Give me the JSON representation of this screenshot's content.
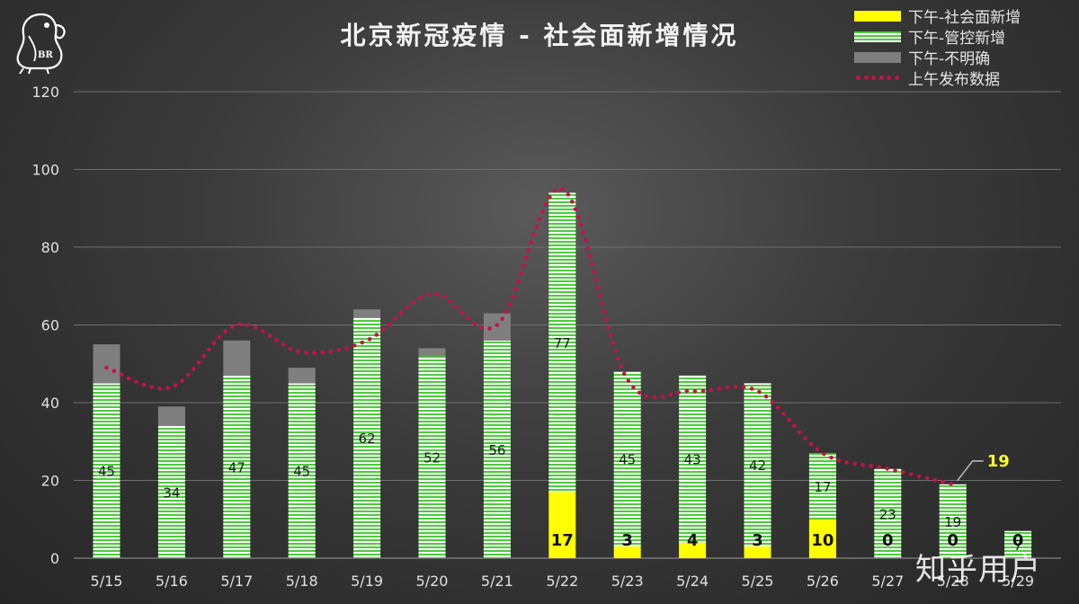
{
  "chart_data": {
    "type": "bar",
    "title": "北京新冠疫情 - 社会面新增情况",
    "categories": [
      "5/15",
      "5/16",
      "5/17",
      "5/18",
      "5/19",
      "5/20",
      "5/21",
      "5/22",
      "5/23",
      "5/24",
      "5/25",
      "5/26",
      "5/27",
      "5/28",
      "5/29"
    ],
    "stacked": true,
    "ylim": [
      0,
      120
    ],
    "yticks": [
      0,
      20,
      40,
      60,
      80,
      100,
      120
    ],
    "grid": true,
    "legend_position": "top-right",
    "series": [
      {
        "name": "下午-社会面新增",
        "kind": "bar",
        "color": "#ffff00",
        "values": [
          0,
          0,
          0,
          0,
          0,
          0,
          0,
          17,
          3,
          4,
          3,
          10,
          0,
          0,
          0
        ],
        "labels": [
          "",
          "",
          "",
          "",
          "",
          "",
          "",
          "17",
          "3",
          "4",
          "3",
          "10",
          "0",
          "0",
          "0"
        ]
      },
      {
        "name": "下午-管控新增",
        "kind": "bar",
        "color": "#4ccc3c",
        "values": [
          45,
          34,
          47,
          45,
          62,
          52,
          56,
          77,
          45,
          43,
          42,
          17,
          23,
          19,
          7
        ],
        "labels": [
          "45",
          "34",
          "47",
          "45",
          "62",
          "52",
          "56",
          "77",
          "45",
          "43",
          "42",
          "17",
          "23",
          "19",
          "7"
        ]
      },
      {
        "name": "下午-不明确",
        "kind": "bar",
        "color": "#7f7f7f",
        "values": [
          10,
          5,
          9,
          4,
          2,
          2,
          7,
          0,
          0,
          0,
          0,
          0,
          0,
          0,
          0
        ]
      },
      {
        "name": "上午发布数据",
        "kind": "line",
        "color": "#c8104a",
        "values": [
          49,
          44,
          60,
          53,
          56,
          68,
          60,
          95,
          46,
          43,
          43,
          27,
          23,
          19,
          null
        ]
      }
    ],
    "annotation": {
      "text": "19",
      "category": "5/28",
      "color": "#ffff33"
    }
  },
  "logo_text": "BR",
  "watermark": "知乎用户"
}
